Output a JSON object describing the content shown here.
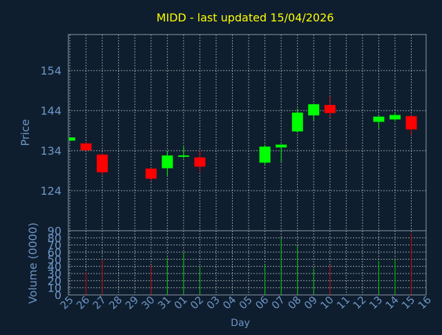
{
  "colors": {
    "background": "#0f1e2e",
    "title": "#ffff00",
    "axis_text": "#6e96c8",
    "frame": "#8f9aa6",
    "grid": "#c8ccd2",
    "up": "#00ff00",
    "down": "#ff0000",
    "up_volume": "#00cc00",
    "down_volume": "#cc0000"
  },
  "chart_data": [
    {
      "type": "candlestick",
      "title": "MIDD - last updated 15/04/2026",
      "ylabel": "Price",
      "ylim": [
        114,
        163
      ],
      "yticks": [
        124,
        134,
        144,
        154
      ],
      "grid": true,
      "categories": [
        "25",
        "26",
        "27",
        "28",
        "29",
        "30",
        "31",
        "01",
        "02",
        "03",
        "04",
        "05",
        "06",
        "07",
        "08",
        "09",
        "10",
        "11",
        "12",
        "13",
        "14",
        "15",
        "16"
      ],
      "candles": [
        {
          "x": "25",
          "open": 136.5,
          "high": 137.2,
          "low": 136.3,
          "close": 137.3
        },
        {
          "x": "26",
          "open": 135.8,
          "high": 136.2,
          "low": 133.9,
          "close": 134.1
        },
        {
          "x": "27",
          "open": 133.0,
          "high": 133.3,
          "low": 128.0,
          "close": 128.6
        },
        {
          "x": "30",
          "open": 129.5,
          "high": 129.8,
          "low": 126.5,
          "close": 127.0
        },
        {
          "x": "31",
          "open": 129.6,
          "high": 134.0,
          "low": 127.8,
          "close": 132.8
        },
        {
          "x": "01",
          "open": 132.5,
          "high": 135.0,
          "low": 132.1,
          "close": 132.8
        },
        {
          "x": "02",
          "open": 132.3,
          "high": 134.0,
          "low": 128.8,
          "close": 130.0
        },
        {
          "x": "06",
          "open": 131.0,
          "high": 135.5,
          "low": 130.5,
          "close": 135.0
        },
        {
          "x": "07",
          "open": 134.8,
          "high": 135.6,
          "low": 131.0,
          "close": 135.5
        },
        {
          "x": "08",
          "open": 138.8,
          "high": 144.5,
          "low": 138.5,
          "close": 143.5
        },
        {
          "x": "09",
          "open": 142.8,
          "high": 145.3,
          "low": 141.5,
          "close": 145.6
        },
        {
          "x": "10",
          "open": 145.4,
          "high": 147.5,
          "low": 142.3,
          "close": 143.4
        },
        {
          "x": "13",
          "open": 141.2,
          "high": 142.6,
          "low": 139.5,
          "close": 142.5
        },
        {
          "x": "14",
          "open": 141.8,
          "high": 143.5,
          "low": 141.3,
          "close": 142.9
        },
        {
          "x": "15",
          "open": 142.6,
          "high": 142.9,
          "low": 138.0,
          "close": 139.3
        }
      ]
    },
    {
      "type": "bar",
      "ylabel": "Volume (0000)",
      "xlabel": "Day",
      "ylim": [
        0,
        90
      ],
      "yticks": [
        0,
        10,
        20,
        30,
        40,
        50,
        60,
        70,
        80,
        90
      ],
      "grid": true,
      "categories": [
        "25",
        "26",
        "27",
        "28",
        "29",
        "30",
        "31",
        "01",
        "02",
        "03",
        "04",
        "05",
        "06",
        "07",
        "08",
        "09",
        "10",
        "11",
        "12",
        "13",
        "14",
        "15",
        "16"
      ],
      "bars": [
        {
          "x": "26",
          "value": 32,
          "dir": "down"
        },
        {
          "x": "27",
          "value": 50,
          "dir": "down"
        },
        {
          "x": "30",
          "value": 41,
          "dir": "down"
        },
        {
          "x": "31",
          "value": 52,
          "dir": "up"
        },
        {
          "x": "01",
          "value": 60,
          "dir": "up"
        },
        {
          "x": "02",
          "value": 40,
          "dir": "up"
        },
        {
          "x": "06",
          "value": 42,
          "dir": "up"
        },
        {
          "x": "07",
          "value": 80,
          "dir": "up"
        },
        {
          "x": "08",
          "value": 69,
          "dir": "up"
        },
        {
          "x": "09",
          "value": 37,
          "dir": "up"
        },
        {
          "x": "10",
          "value": 42,
          "dir": "down"
        },
        {
          "x": "13",
          "value": 48,
          "dir": "up"
        },
        {
          "x": "14",
          "value": 50,
          "dir": "up"
        },
        {
          "x": "15",
          "value": 86,
          "dir": "down"
        }
      ]
    }
  ]
}
